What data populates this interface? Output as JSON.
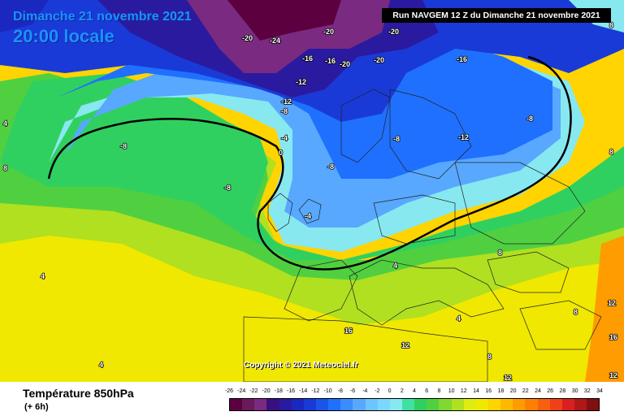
{
  "header": {
    "date": "Dimanche 21 novembre 2021",
    "time": "20:00 locale",
    "run": "Run NAVGEM 12 Z du Dimanche 21 novembre 2021"
  },
  "footer": {
    "parameter": "Température 850hPa",
    "lead": "(+ 6h)",
    "copyright": "Copyright © 2021 Meteociel.fr"
  },
  "legend": {
    "ticks": [
      "-26",
      "-24",
      "-22",
      "-20",
      "-18",
      "-16",
      "-14",
      "-12",
      "-10",
      "-8",
      "-6",
      "-4",
      "-2",
      "0",
      "2",
      "4",
      "6",
      "8",
      "10",
      "12",
      "14",
      "16",
      "18",
      "20",
      "22",
      "24",
      "26",
      "28",
      "30",
      "32",
      "34"
    ],
    "colors": [
      "#5c0040",
      "#6a1a5a",
      "#7a2a80",
      "#3a1080",
      "#2a1aa0",
      "#1a28c0",
      "#1a3ad8",
      "#1a55e8",
      "#1f70ff",
      "#3a8cff",
      "#58a8ff",
      "#6ec4ff",
      "#7ad8ff",
      "#88e8f0",
      "#40e0a0",
      "#30d060",
      "#50d040",
      "#80d830",
      "#b0e020",
      "#e0ec10",
      "#f0e800",
      "#ffd400",
      "#ffb800",
      "#ff9c00",
      "#ff8000",
      "#f86010",
      "#f04018",
      "#d82020",
      "#b01818",
      "#801010"
    ]
  },
  "map_labels": [
    "-20",
    "-24",
    "-20",
    "-20",
    "-16",
    "-16",
    "-20",
    "-20",
    "-16",
    "-12",
    "-12",
    "-8",
    "-8",
    "-8",
    "-8",
    "-12",
    "-8",
    "-8",
    "-4",
    "0",
    "4",
    "-4",
    "4",
    "4",
    "8",
    "4",
    "8",
    "12",
    "16",
    "8",
    "8",
    "12",
    "8",
    "12",
    "4",
    "8",
    "12",
    "16"
  ]
}
